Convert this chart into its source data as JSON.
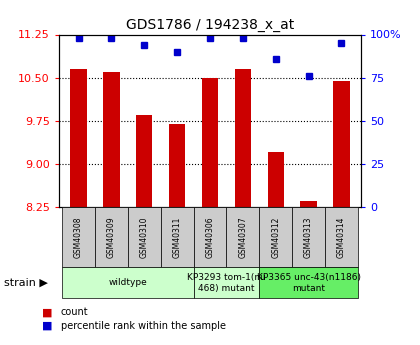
{
  "title": "GDS1786 / 194238_x_at",
  "samples": [
    "GSM40308",
    "GSM40309",
    "GSM40310",
    "GSM40311",
    "GSM40306",
    "GSM40307",
    "GSM40312",
    "GSM40313",
    "GSM40314"
  ],
  "count_values": [
    10.65,
    10.6,
    9.85,
    9.7,
    10.5,
    10.65,
    9.2,
    8.35,
    10.45
  ],
  "percentile_values": [
    98,
    98,
    94,
    90,
    98,
    98,
    86,
    76,
    95
  ],
  "ylim_left": [
    8.25,
    11.25
  ],
  "ylim_right": [
    0,
    100
  ],
  "yticks_left": [
    8.25,
    9.0,
    9.75,
    10.5,
    11.25
  ],
  "yticks_right": [
    0,
    25,
    50,
    75,
    100
  ],
  "bar_color": "#cc0000",
  "dot_color": "#0000cc",
  "bg_color": "#ffffff",
  "strain_groups": [
    {
      "label": "wildtype",
      "start": 0,
      "end": 3,
      "color": "#ccffcc"
    },
    {
      "label": "KP3293 tom-1(nu\n468) mutant",
      "start": 4,
      "end": 5,
      "color": "#ccffcc"
    },
    {
      "label": "KP3365 unc-43(n1186)\nmutant",
      "start": 6,
      "end": 8,
      "color": "#66ee66"
    }
  ],
  "legend_count_label": "count",
  "legend_pct_label": "percentile rank within the sample",
  "strain_label": "strain"
}
